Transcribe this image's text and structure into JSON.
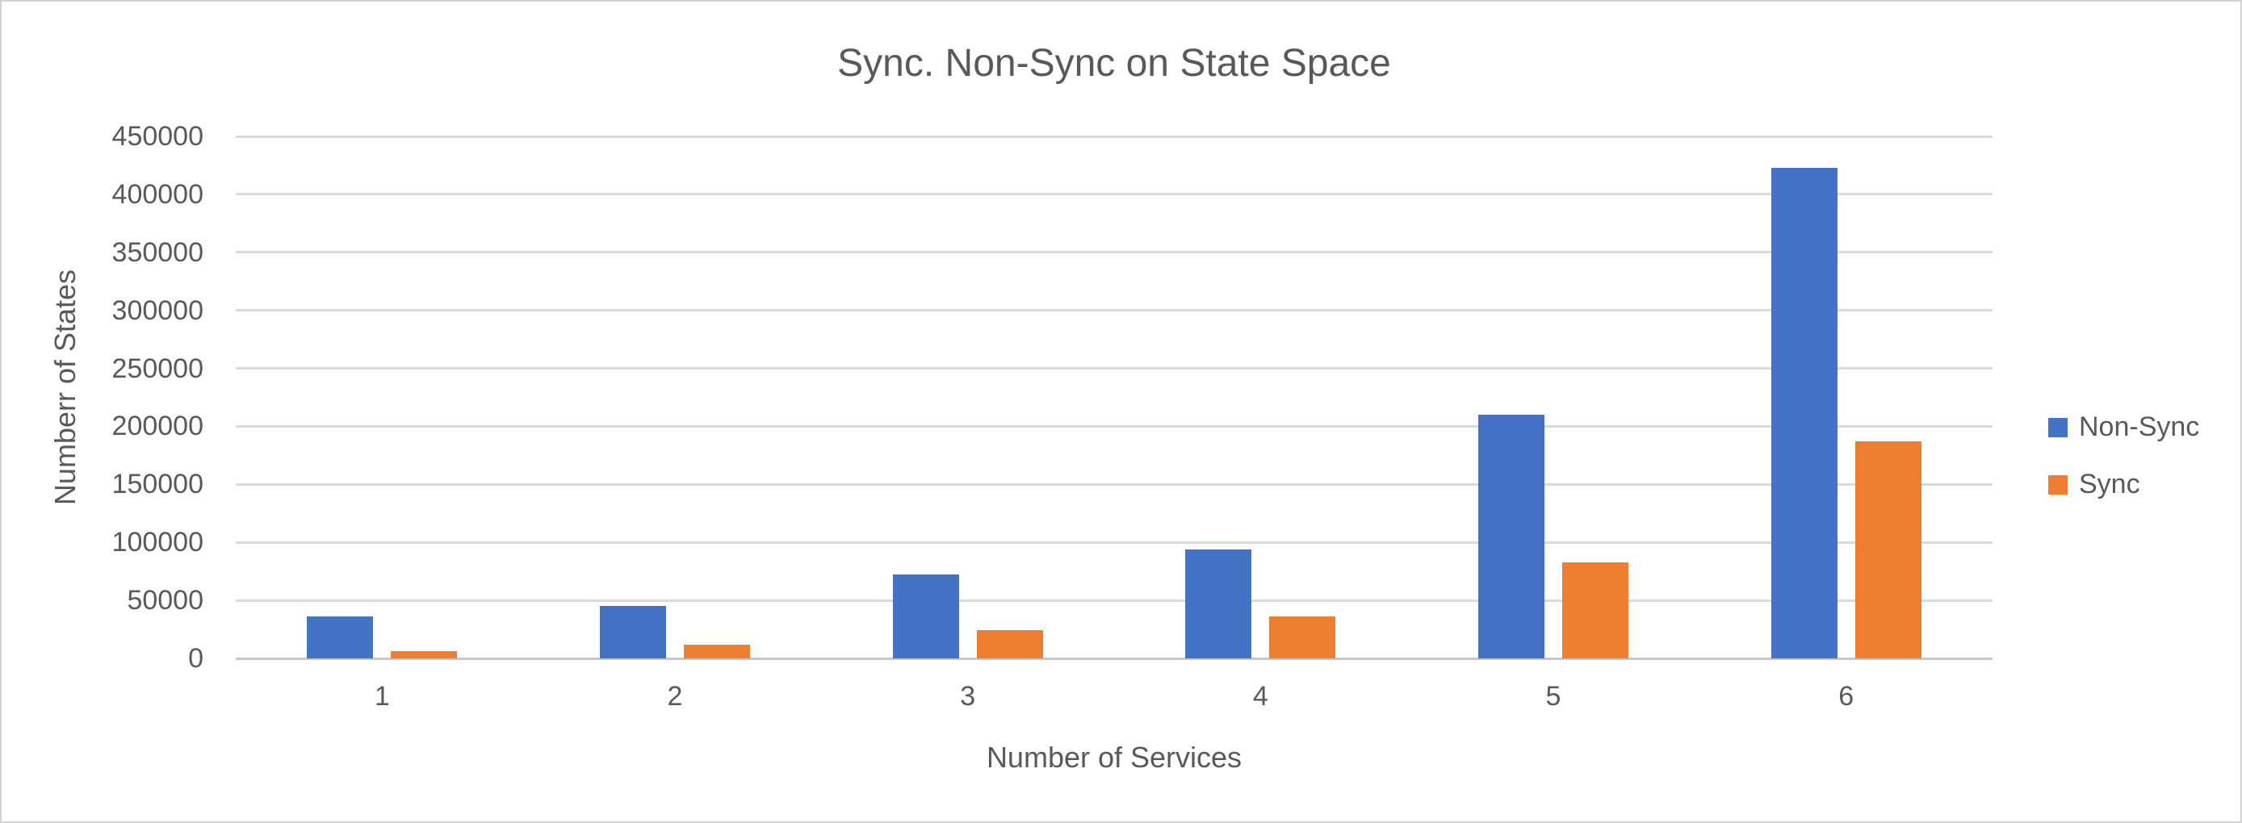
{
  "chart_data": {
    "type": "bar",
    "title": "Sync. Non-Sync on State Space",
    "xlabel": "Number of Services",
    "ylabel": "Numberr of States",
    "categories": [
      "1",
      "2",
      "3",
      "4",
      "5",
      "6"
    ],
    "series": [
      {
        "name": "Non-Sync",
        "color": "#4472C4",
        "values": [
          36500,
          45500,
          72000,
          94000,
          210000,
          423000
        ]
      },
      {
        "name": "Sync",
        "color": "#ED7D31",
        "values": [
          6000,
          11500,
          24000,
          36500,
          83000,
          187000
        ]
      }
    ],
    "ylim": [
      0,
      450000
    ],
    "ytick_step": 50000,
    "ytick_labels": [
      "0",
      "50000",
      "100000",
      "150000",
      "200000",
      "250000",
      "300000",
      "350000",
      "400000",
      "450000"
    ],
    "grid": true,
    "legend_position": "right",
    "grid_color": "#D9D9D9",
    "text_color": "#595959"
  }
}
